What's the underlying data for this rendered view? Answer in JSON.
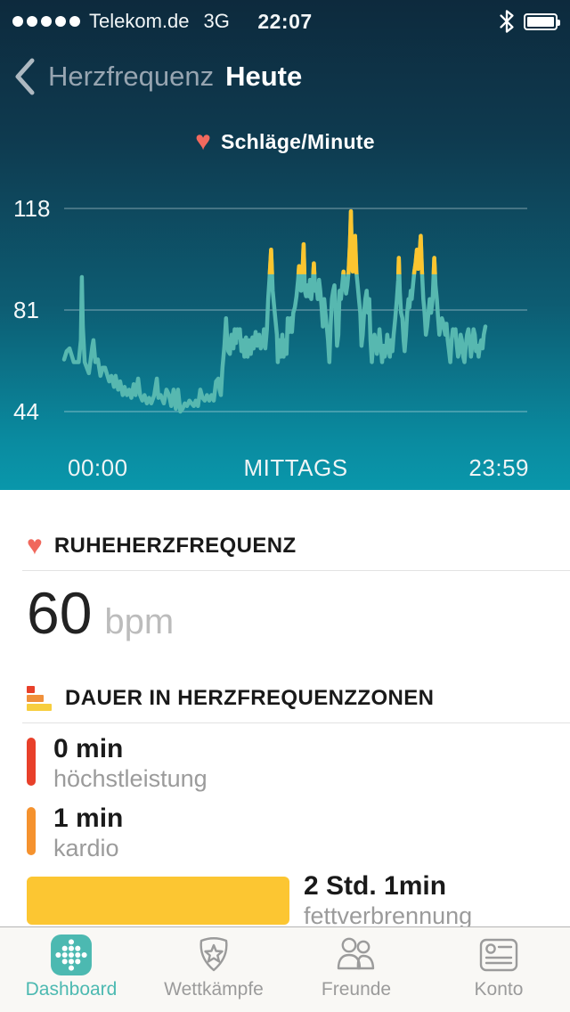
{
  "status_bar": {
    "signal_dots": 5,
    "carrier": "Telekom.de",
    "network": "3G",
    "time": "22:07",
    "icons": [
      "bluetooth-icon",
      "battery-full-icon"
    ]
  },
  "nav": {
    "back_label": "Herzfrequenz",
    "title": "Heute"
  },
  "chart_data": {
    "type": "line",
    "title": "Schläge/Minute",
    "legend_icon": "heart-icon",
    "yticks": [
      118,
      81,
      44
    ],
    "xticks": [
      "00:00",
      "MITTAGS",
      "23:59"
    ],
    "x_range_minutes": [
      0,
      1439
    ],
    "ylim": [
      35,
      125
    ],
    "grid": true,
    "cardio_threshold_bpm": 94,
    "colors": {
      "line": "#57b8b0",
      "above_threshold": "#fcc52f",
      "gridline": "rgba(255,255,255,0.38)",
      "bg_top": "#0d2a3d",
      "bg_bottom": "#0997ab"
    },
    "series": [
      {
        "name": "Herzfrequenz",
        "unit": "bpm",
        "points": [
          [
            0,
            63
          ],
          [
            8,
            66
          ],
          [
            17,
            67
          ],
          [
            30,
            62
          ],
          [
            45,
            62
          ],
          [
            52,
            70
          ],
          [
            55,
            93
          ],
          [
            58,
            75
          ],
          [
            64,
            62
          ],
          [
            77,
            58
          ],
          [
            88,
            68
          ],
          [
            91,
            70
          ],
          [
            97,
            62
          ],
          [
            105,
            63
          ],
          [
            113,
            57
          ],
          [
            120,
            60
          ],
          [
            127,
            60
          ],
          [
            140,
            55
          ],
          [
            147,
            57
          ],
          [
            155,
            53
          ],
          [
            160,
            57
          ],
          [
            168,
            52
          ],
          [
            174,
            55
          ],
          [
            182,
            50
          ],
          [
            188,
            53
          ],
          [
            195,
            50
          ],
          [
            202,
            52
          ],
          [
            209,
            49
          ],
          [
            216,
            54
          ],
          [
            222,
            50
          ],
          [
            230,
            56
          ],
          [
            236,
            50
          ],
          [
            243,
            48
          ],
          [
            250,
            50
          ],
          [
            257,
            47
          ],
          [
            264,
            49
          ],
          [
            271,
            47
          ],
          [
            280,
            50
          ],
          [
            288,
            56
          ],
          [
            293,
            49
          ],
          [
            300,
            50
          ],
          [
            310,
            47
          ],
          [
            318,
            52
          ],
          [
            326,
            50
          ],
          [
            333,
            46
          ],
          [
            340,
            52
          ],
          [
            347,
            45
          ],
          [
            354,
            52
          ],
          [
            361,
            44
          ],
          [
            368,
            45
          ],
          [
            375,
            47
          ],
          [
            382,
            46
          ],
          [
            389,
            48
          ],
          [
            396,
            47
          ],
          [
            403,
            46
          ],
          [
            409,
            48
          ],
          [
            416,
            46
          ],
          [
            423,
            52
          ],
          [
            430,
            49
          ],
          [
            437,
            48
          ],
          [
            444,
            50
          ],
          [
            451,
            48
          ],
          [
            458,
            50
          ],
          [
            465,
            48
          ],
          [
            472,
            55
          ],
          [
            479,
            56
          ],
          [
            483,
            52
          ],
          [
            487,
            50
          ],
          [
            492,
            60
          ],
          [
            498,
            68
          ],
          [
            503,
            78
          ],
          [
            506,
            72
          ],
          [
            510,
            66
          ],
          [
            515,
            65
          ],
          [
            520,
            72
          ],
          [
            526,
            67
          ],
          [
            530,
            74
          ],
          [
            534,
            69
          ],
          [
            538,
            74
          ],
          [
            542,
            71
          ],
          [
            546,
            74
          ],
          [
            551,
            66
          ],
          [
            556,
            70
          ],
          [
            560,
            64
          ],
          [
            565,
            71
          ],
          [
            570,
            64
          ],
          [
            575,
            70
          ],
          [
            580,
            65
          ],
          [
            585,
            71
          ],
          [
            589,
            67
          ],
          [
            595,
            73
          ],
          [
            600,
            68
          ],
          [
            606,
            72
          ],
          [
            611,
            67
          ],
          [
            617,
            69
          ],
          [
            621,
            74
          ],
          [
            625,
            67
          ],
          [
            630,
            74
          ],
          [
            634,
            85
          ],
          [
            638,
            92
          ],
          [
            643,
            103
          ],
          [
            648,
            88
          ],
          [
            652,
            83
          ],
          [
            656,
            78
          ],
          [
            661,
            72
          ],
          [
            664,
            62
          ],
          [
            668,
            70
          ],
          [
            673,
            64
          ],
          [
            678,
            72
          ],
          [
            682,
            64
          ],
          [
            686,
            70
          ],
          [
            691,
            65
          ],
          [
            695,
            78
          ],
          [
            700,
            73
          ],
          [
            704,
            78
          ],
          [
            708,
            73
          ],
          [
            712,
            80
          ],
          [
            717,
            82
          ],
          [
            722,
            86
          ],
          [
            727,
            92
          ],
          [
            730,
            97
          ],
          [
            733,
            90
          ],
          [
            736,
            88
          ],
          [
            740,
            93
          ],
          [
            744,
            105
          ],
          [
            748,
            88
          ],
          [
            752,
            86
          ],
          [
            756,
            90
          ],
          [
            760,
            86
          ],
          [
            764,
            92
          ],
          [
            768,
            85
          ],
          [
            772,
            90
          ],
          [
            776,
            98
          ],
          [
            780,
            88
          ],
          [
            784,
            90
          ],
          [
            788,
            85
          ],
          [
            792,
            92
          ],
          [
            796,
            88
          ],
          [
            800,
            82
          ],
          [
            804,
            75
          ],
          [
            808,
            85
          ],
          [
            812,
            80
          ],
          [
            816,
            75
          ],
          [
            820,
            70
          ],
          [
            824,
            62
          ],
          [
            828,
            75
          ],
          [
            832,
            85
          ],
          [
            836,
            88
          ],
          [
            840,
            90
          ],
          [
            844,
            80
          ],
          [
            848,
            68
          ],
          [
            852,
            72
          ],
          [
            856,
            88
          ],
          [
            860,
            85
          ],
          [
            864,
            90
          ],
          [
            868,
            95
          ],
          [
            872,
            90
          ],
          [
            876,
            87
          ],
          [
            880,
            90
          ],
          [
            884,
            95
          ],
          [
            888,
            105
          ],
          [
            891,
            117
          ],
          [
            894,
            100
          ],
          [
            897,
            95
          ],
          [
            900,
            98
          ],
          [
            904,
            108
          ],
          [
            908,
            95
          ],
          [
            912,
            90
          ],
          [
            916,
            85
          ],
          [
            920,
            80
          ],
          [
            924,
            68
          ],
          [
            928,
            72
          ],
          [
            932,
            80
          ],
          [
            936,
            85
          ],
          [
            940,
            88
          ],
          [
            944,
            80
          ],
          [
            948,
            85
          ],
          [
            952,
            70
          ],
          [
            956,
            62
          ],
          [
            960,
            68
          ],
          [
            964,
            72
          ],
          [
            968,
            70
          ],
          [
            972,
            65
          ],
          [
            976,
            68
          ],
          [
            980,
            74
          ],
          [
            984,
            68
          ],
          [
            988,
            62
          ],
          [
            992,
            68
          ],
          [
            996,
            64
          ],
          [
            1000,
            66
          ],
          [
            1004,
            72
          ],
          [
            1008,
            68
          ],
          [
            1012,
            64
          ],
          [
            1016,
            70
          ],
          [
            1020,
            66
          ],
          [
            1024,
            72
          ],
          [
            1029,
            78
          ],
          [
            1034,
            85
          ],
          [
            1038,
            92
          ],
          [
            1040,
            100
          ],
          [
            1043,
            88
          ],
          [
            1047,
            80
          ],
          [
            1051,
            78
          ],
          [
            1055,
            70
          ],
          [
            1058,
            66
          ],
          [
            1062,
            72
          ],
          [
            1066,
            80
          ],
          [
            1070,
            85
          ],
          [
            1073,
            82
          ],
          [
            1077,
            88
          ],
          [
            1080,
            85
          ],
          [
            1084,
            90
          ],
          [
            1088,
            95
          ],
          [
            1092,
            98
          ],
          [
            1096,
            103
          ],
          [
            1100,
            96
          ],
          [
            1104,
            100
          ],
          [
            1108,
            108
          ],
          [
            1112,
            95
          ],
          [
            1116,
            85
          ],
          [
            1120,
            80
          ],
          [
            1124,
            72
          ],
          [
            1128,
            75
          ],
          [
            1132,
            80
          ],
          [
            1136,
            85
          ],
          [
            1140,
            80
          ],
          [
            1145,
            85
          ],
          [
            1150,
            100
          ],
          [
            1154,
            90
          ],
          [
            1158,
            85
          ],
          [
            1162,
            78
          ],
          [
            1166,
            72
          ],
          [
            1170,
            75
          ],
          [
            1174,
            78
          ],
          [
            1179,
            76
          ],
          [
            1184,
            72
          ],
          [
            1188,
            76
          ],
          [
            1192,
            70
          ],
          [
            1196,
            66
          ],
          [
            1200,
            62
          ],
          [
            1204,
            70
          ],
          [
            1208,
            74
          ],
          [
            1212,
            72
          ],
          [
            1216,
            74
          ],
          [
            1220,
            68
          ],
          [
            1224,
            64
          ],
          [
            1228,
            66
          ],
          [
            1232,
            72
          ],
          [
            1236,
            70
          ],
          [
            1240,
            64
          ],
          [
            1244,
            62
          ],
          [
            1248,
            68
          ],
          [
            1252,
            72
          ],
          [
            1256,
            74
          ],
          [
            1260,
            70
          ],
          [
            1264,
            64
          ],
          [
            1268,
            68
          ],
          [
            1272,
            74
          ],
          [
            1276,
            72
          ],
          [
            1280,
            66
          ],
          [
            1284,
            68
          ],
          [
            1288,
            64
          ],
          [
            1292,
            68
          ],
          [
            1296,
            70
          ],
          [
            1300,
            67
          ],
          [
            1304,
            72
          ],
          [
            1309,
            75
          ]
        ]
      }
    ]
  },
  "resting_hr": {
    "icon": "heart-icon",
    "heading": "RUHEHERZFREQUENZ",
    "value": "60",
    "unit": "bpm"
  },
  "zones": {
    "icon": "heart-rate-zones-icon",
    "heading": "DAUER IN HERZFREQUENZZONEN",
    "items": [
      {
        "value": "0 min",
        "label": "höchstleistung",
        "color": "#e8402a"
      },
      {
        "value": "1 min",
        "label": "kardio",
        "color": "#f5922e"
      },
      {
        "value": "2 Std. 1min",
        "label": "fettverbrennung",
        "color": "#fcc632"
      }
    ]
  },
  "tab_bar": {
    "active_color": "#4cb9b1",
    "inactive_color": "#9b9b9b",
    "items": [
      {
        "label": "Dashboard",
        "icon": "fitbit-dots-icon",
        "active": true
      },
      {
        "label": "Wettkämpfe",
        "icon": "shield-star-icon",
        "active": false
      },
      {
        "label": "Freunde",
        "icon": "friends-icon",
        "active": false
      },
      {
        "label": "Konto",
        "icon": "id-card-icon",
        "active": false
      }
    ]
  }
}
